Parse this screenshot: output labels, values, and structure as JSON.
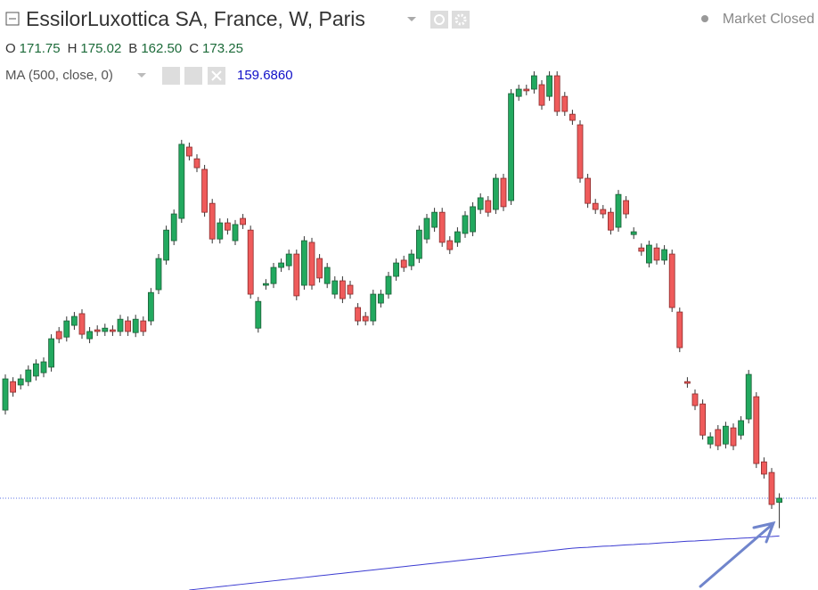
{
  "chart_data": {
    "type": "candlestick",
    "title": "EssilorLuxottica SA, France, W, Paris",
    "status": "Market Closed",
    "ohlc_labels": [
      "O",
      "H",
      "B",
      "C"
    ],
    "ohlc_value_labels": [
      "171.75",
      "175.02",
      "162.50",
      "173.25"
    ],
    "ma_label": "MA (500, close, 0)",
    "ma_value_label": "159.6860",
    "ylim": [
      140.3,
      352.1
    ],
    "up_color": "#22a95f",
    "down_color": "#ef5b5b",
    "open": [
      204.9,
      215.1,
      213.9,
      215.1,
      217.1,
      218.3,
      220.3,
      233.1,
      231.1,
      235.3,
      239.5,
      230.5,
      233.7,
      233.1,
      233.7,
      233.1,
      236.9,
      232.7,
      236.9,
      236.9,
      248.1,
      258.7,
      265.7,
      273.7,
      299.3,
      295.1,
      291.3,
      279.1,
      266.3,
      272.1,
      265.7,
      273.7,
      269.5,
      234.3,
      249.7,
      250.3,
      256.1,
      256.7,
      260.9,
      249.7,
      265.1,
      259.3,
      250.3,
      246.5,
      251.3,
      249.7,
      241.7,
      238.5,
      236.9,
      243.3,
      246.5,
      252.9,
      258.7,
      256.7,
      259.3,
      266.3,
      270.5,
      275.9,
      265.7,
      265.1,
      268.3,
      268.9,
      276.9,
      280.1,
      276.9,
      288.1,
      280.1,
      317.5,
      320.1,
      320.1,
      321.7,
      317.5,
      324.9,
      317.5,
      311.1,
      307.3,
      288.1,
      279.1,
      276.9,
      275.9,
      270.5,
      280.1,
      267.9,
      263.1,
      257.7,
      263.1,
      258.7,
      260.9,
      240.1,
      215.1,
      210.7,
      207.1,
      192.7,
      197.9,
      192.7,
      198.5,
      195.9,
      201.7,
      209.7,
      186.3,
      182.5,
      171.75
    ],
    "high": [
      217.7,
      216.7,
      217.7,
      220.9,
      223.1,
      223.8,
      232.1,
      234.7,
      238.5,
      240.1,
      241.1,
      234.7,
      235.3,
      235.9,
      235.3,
      239.1,
      238.5,
      239.1,
      238.5,
      248.7,
      260.9,
      271.1,
      276.9,
      301.9,
      300.9,
      296.7,
      292.9,
      280.7,
      273.7,
      273.7,
      273.1,
      275.3,
      271.1,
      245.5,
      251.9,
      257.7,
      259.3,
      262.5,
      262.5,
      267.3,
      266.7,
      260.9,
      257.7,
      252.9,
      252.9,
      251.3,
      243.3,
      240.1,
      248.1,
      248.1,
      254.5,
      259.3,
      260.3,
      262.5,
      271.1,
      275.3,
      277.5,
      277.5,
      267.3,
      270.5,
      276.3,
      279.5,
      282.7,
      281.7,
      289.7,
      289.7,
      320.1,
      321.7,
      321.7,
      326.5,
      323.3,
      326.5,
      326.5,
      319.1,
      312.7,
      308.9,
      289.7,
      280.7,
      278.5,
      277.5,
      283.9,
      281.7,
      270.5,
      264.7,
      265.7,
      264.7,
      264.1,
      262.5,
      241.7,
      216.7,
      212.3,
      208.7,
      196.9,
      199.5,
      200.7,
      200.1,
      202.7,
      219.3,
      211.3,
      187.9,
      184.1,
      175.02
    ],
    "low": [
      203.3,
      209.7,
      212.3,
      213.5,
      215.5,
      216.7,
      218.7,
      228.9,
      229.5,
      233.7,
      230.5,
      228.9,
      231.5,
      231.5,
      231.5,
      231.5,
      231.5,
      231.1,
      231.5,
      235.3,
      246.5,
      257.1,
      264.1,
      272.1,
      294.5,
      290.3,
      274.3,
      264.7,
      264.7,
      267.9,
      264.1,
      269.9,
      244.9,
      232.7,
      248.1,
      248.7,
      254.5,
      255.1,
      244.3,
      248.1,
      248.1,
      250.7,
      248.7,
      244.9,
      243.3,
      244.9,
      235.3,
      235.3,
      235.3,
      241.7,
      244.9,
      251.3,
      254.5,
      255.1,
      257.7,
      264.7,
      268.9,
      263.5,
      260.9,
      263.5,
      266.7,
      267.3,
      275.3,
      274.3,
      275.3,
      276.3,
      278.5,
      315.9,
      317.9,
      318.5,
      312.7,
      315.9,
      310.5,
      310.5,
      307.3,
      286.5,
      277.5,
      275.3,
      273.7,
      267.9,
      268.9,
      273.7,
      266.3,
      260.3,
      256.1,
      257.1,
      257.1,
      240.1,
      225.7,
      212.9,
      204.9,
      194.3,
      191.1,
      190.5,
      191.1,
      190.5,
      194.3,
      200.1,
      184.1,
      180.3,
      169.4,
      162.5
    ],
    "close": [
      216.1,
      211.3,
      216.1,
      219.3,
      221.5,
      222.2,
      230.5,
      230.5,
      236.9,
      238.5,
      232.1,
      233.1,
      233.1,
      234.3,
      233.1,
      237.5,
      233.1,
      237.5,
      233.1,
      247.1,
      259.3,
      269.5,
      275.3,
      300.3,
      296.1,
      291.9,
      275.9,
      266.3,
      272.1,
      269.5,
      271.5,
      271.5,
      246.5,
      243.9,
      250.3,
      256.1,
      257.7,
      260.9,
      245.9,
      265.7,
      249.7,
      252.3,
      256.1,
      251.3,
      244.9,
      246.5,
      236.9,
      236.9,
      246.5,
      246.5,
      252.9,
      257.7,
      256.1,
      260.9,
      269.5,
      273.7,
      275.9,
      265.1,
      262.5,
      268.9,
      274.7,
      277.9,
      281.1,
      275.9,
      288.1,
      277.9,
      318.5,
      320.1,
      319.5,
      324.9,
      314.3,
      324.9,
      312.1,
      312.1,
      308.9,
      288.1,
      279.1,
      276.9,
      275.3,
      269.5,
      282.3,
      275.3,
      268.9,
      261.9,
      264.1,
      258.7,
      262.5,
      241.7,
      227.3,
      214.5,
      206.5,
      195.9,
      195.3,
      192.1,
      199.1,
      192.1,
      201.1,
      217.7,
      185.7,
      181.9,
      171.0,
      173.25
    ],
    "ma": {
      "color": "#3b3bd1",
      "values": [
        null,
        null,
        null,
        null,
        null,
        null,
        null,
        null,
        null,
        null,
        null,
        null,
        null,
        null,
        null,
        null,
        null,
        null,
        null,
        null,
        null,
        null,
        null,
        null,
        140.3,
        140.6,
        140.9,
        141.2,
        141.5,
        141.8,
        142.1,
        142.4,
        142.7,
        143.0,
        143.3,
        143.6,
        143.9,
        144.2,
        144.5,
        144.8,
        145.1,
        145.4,
        145.7,
        146.0,
        146.3,
        146.6,
        146.9,
        147.2,
        147.5,
        147.8,
        148.1,
        148.4,
        148.7,
        149.0,
        149.3,
        149.6,
        149.9,
        150.2,
        150.5,
        150.8,
        151.1,
        151.4,
        151.7,
        152.0,
        152.3,
        152.6,
        152.9,
        153.2,
        153.5,
        153.8,
        154.1,
        154.4,
        154.7,
        155.0,
        155.3,
        155.5,
        155.6,
        155.8,
        156.0,
        156.1,
        156.3,
        156.5,
        156.6,
        156.8,
        156.9,
        157.1,
        157.3,
        157.4,
        157.6,
        157.8,
        157.9,
        158.1,
        158.2,
        158.4,
        158.6,
        158.7,
        158.9,
        159.0,
        159.2,
        159.4,
        159.5,
        159.686
      ]
    },
    "price_line_color": "#5d73e6"
  }
}
